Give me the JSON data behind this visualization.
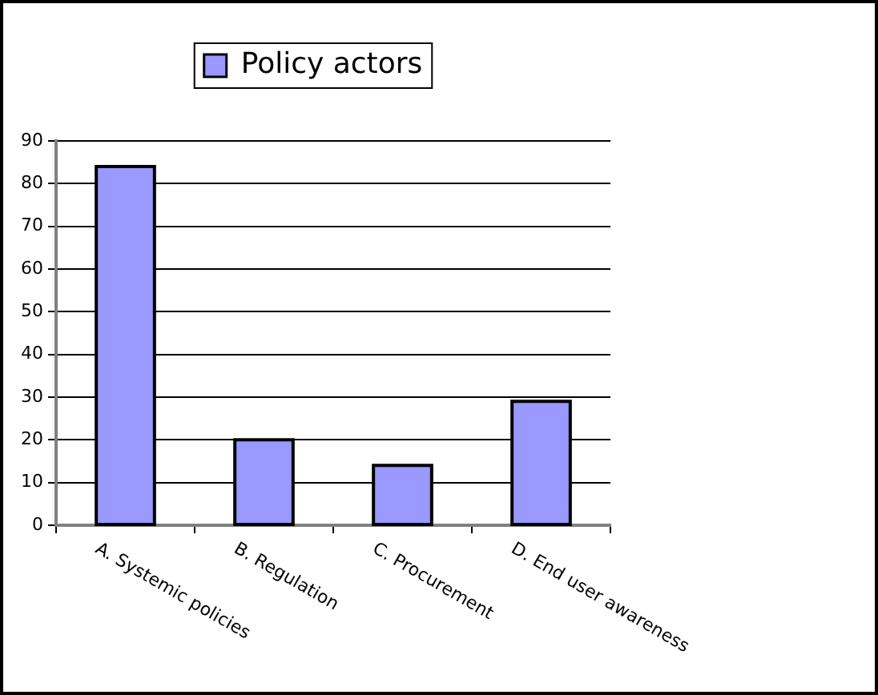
{
  "chart_data": {
    "type": "bar",
    "categories": [
      "A. Systemic policies",
      "B. Regulation",
      "C. Procurement",
      "D. End user awareness"
    ],
    "series": [
      {
        "name": "Policy actors",
        "color": "#9999ff",
        "values": [
          84,
          20,
          14,
          29
        ]
      }
    ],
    "ylim": [
      0,
      90
    ],
    "yticks": [
      0,
      10,
      20,
      30,
      40,
      50,
      60,
      70,
      80,
      90
    ],
    "grid": "y",
    "legend": "top"
  }
}
